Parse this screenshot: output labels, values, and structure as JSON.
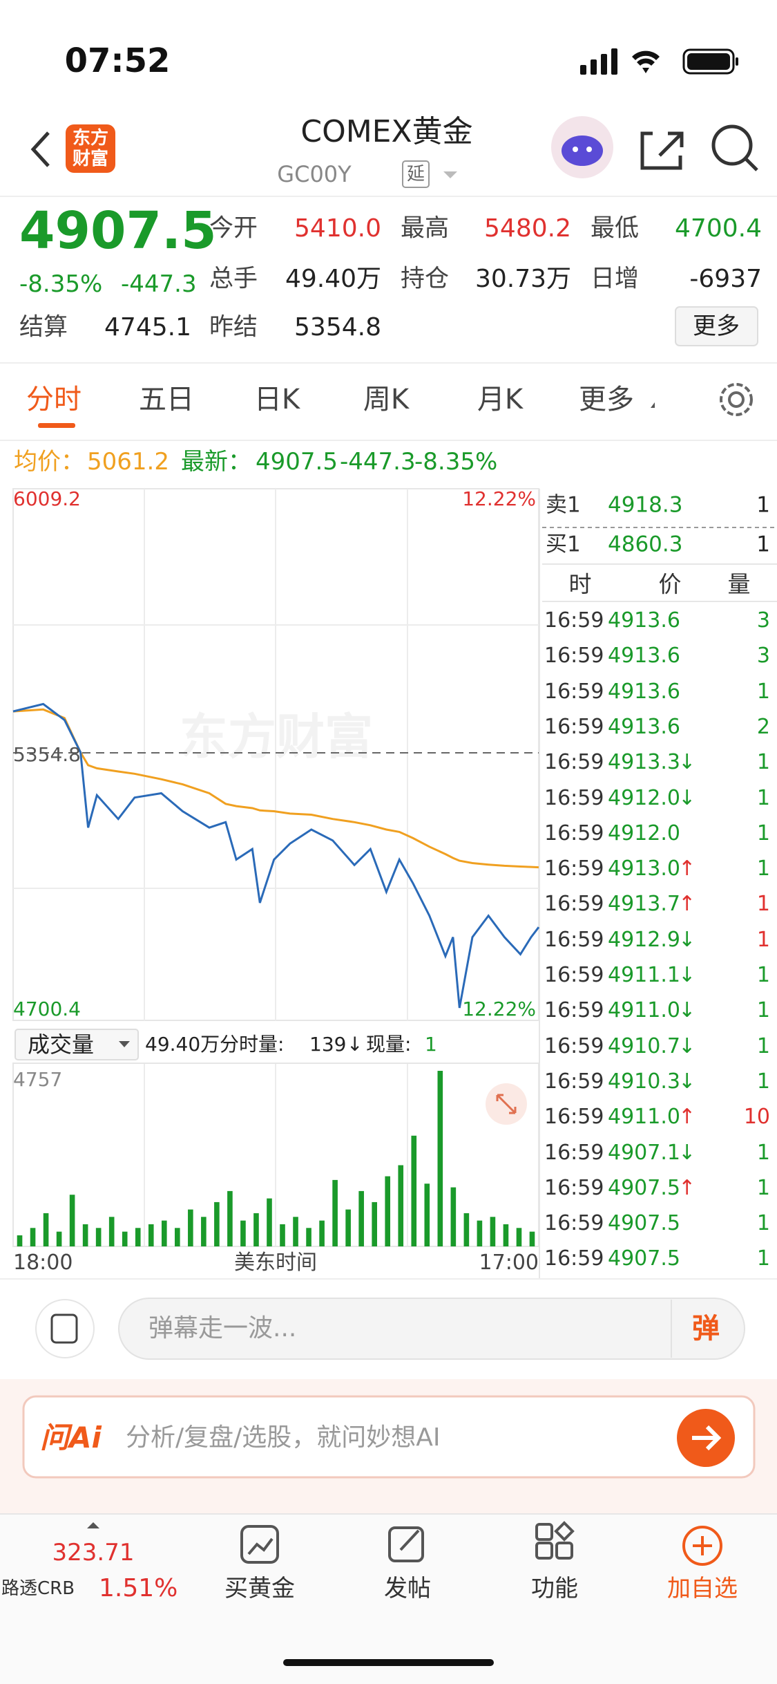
{
  "status": {
    "time": "07:52"
  },
  "header": {
    "logo": [
      "东方",
      "财富"
    ],
    "title": "COMEX黄金",
    "code": "GC00Y",
    "tag": "延"
  },
  "quote": {
    "price": "4907.5",
    "change_pct": "-8.35%",
    "change": "-447.3",
    "fields": [
      {
        "label": "今开",
        "value": "5410.0",
        "color": "#e0312f"
      },
      {
        "label": "最高",
        "value": "5480.2",
        "color": "#e0312f"
      },
      {
        "label": "最低",
        "value": "4700.4",
        "color": "#1a9a2a"
      },
      {
        "label": "总手",
        "value": "49.40万",
        "color": "#222"
      },
      {
        "label": "持仓",
        "value": "30.73万",
        "color": "#222"
      },
      {
        "label": "日增",
        "value": "-6937",
        "color": "#222"
      },
      {
        "label": "结算",
        "value": "4745.1",
        "color": "#222"
      },
      {
        "label": "昨结",
        "value": "5354.8",
        "color": "#222"
      }
    ],
    "more": "更多"
  },
  "tabs": [
    "分时",
    "五日",
    "日K",
    "周K",
    "月K",
    "更多"
  ],
  "summary": {
    "avg_label": "均价：",
    "avg": "5061.2",
    "latest_label": "最新：",
    "latest": "4907.5",
    "change": "-447.3",
    "change_pct": "-8.35%"
  },
  "chart": {
    "type": "line",
    "ylim": [
      4700.4,
      6009.2
    ],
    "ref": 5354.8,
    "pct_top": "12.22%",
    "pct_bottom": "12.22%",
    "watermark": "东方财富",
    "xlim": [
      0,
      1380
    ],
    "minutes": [
      0,
      79,
      135,
      177,
      197,
      220,
      276,
      319,
      389,
      445,
      515,
      558,
      586,
      628,
      648,
      685,
      727,
      783,
      839,
      896,
      938,
      980,
      1014,
      1050,
      1093,
      1135,
      1155,
      1172,
      1206,
      1248,
      1290,
      1332,
      1360,
      1380
    ],
    "price": [
      5461,
      5480,
      5439,
      5356,
      5163,
      5246,
      5185,
      5240,
      5251,
      5205,
      5163,
      5177,
      5081,
      5108,
      4970,
      5081,
      5122,
      5158,
      5130,
      5067,
      5108,
      4998,
      5081,
      5020,
      4937,
      4833,
      4882,
      4700.4,
      4882,
      4937,
      4882,
      4838,
      4882,
      4907.5
    ],
    "avg": [
      5461,
      5466,
      5444,
      5356,
      5323,
      5315,
      5307,
      5301,
      5287,
      5274,
      5251,
      5224,
      5218,
      5213,
      5207,
      5205,
      5199,
      5196,
      5185,
      5177,
      5169,
      5158,
      5152,
      5136,
      5114,
      5095,
      5085,
      5078,
      5072,
      5068,
      5065,
      5063,
      5062,
      5061.2
    ],
    "price_color": "#2a6ab8",
    "avg_color": "#f0a020",
    "x_labels": [
      "18:00",
      "美东时间",
      "17:00"
    ]
  },
  "volume": {
    "selector": "成交量",
    "total": "49.40万",
    "minute_label": "分时量:",
    "minute": "139",
    "arrow": "↓",
    "now_label": "现量:",
    "now": "1",
    "ylim": [
      0,
      4757
    ],
    "max_label": "4757",
    "color": "#1a9a2a",
    "values": [
      300,
      500,
      900,
      400,
      1400,
      600,
      500,
      800,
      400,
      500,
      600,
      700,
      500,
      1000,
      800,
      1200,
      1500,
      700,
      900,
      1300,
      600,
      800,
      500,
      700,
      1800,
      1000,
      1500,
      1200,
      1900,
      2200,
      3000,
      1700,
      4757,
      1600,
      900,
      700,
      800,
      600,
      500,
      400
    ]
  },
  "order_book": {
    "ask": {
      "label": "卖1",
      "price": "4918.3",
      "qty": "1"
    },
    "bid": {
      "label": "买1",
      "price": "4860.3",
      "qty": "1"
    }
  },
  "trades": {
    "headers": [
      "时",
      "价",
      "量"
    ],
    "rows": [
      {
        "time": "16:59",
        "price": "4913.6",
        "qty": "3",
        "qty_color": "#1a9a2a"
      },
      {
        "time": "16:59",
        "price": "4913.6",
        "qty": "3",
        "qty_color": "#1a9a2a"
      },
      {
        "time": "16:59",
        "price": "4913.6",
        "qty": "1",
        "qty_color": "#1a9a2a"
      },
      {
        "time": "16:59",
        "price": "4913.6",
        "qty": "2",
        "qty_color": "#1a9a2a"
      },
      {
        "time": "16:59",
        "price": "4913.3",
        "dir": "↓",
        "qty": "1",
        "qty_color": "#1a9a2a"
      },
      {
        "time": "16:59",
        "price": "4912.0",
        "dir": "↓",
        "qty": "1",
        "qty_color": "#1a9a2a"
      },
      {
        "time": "16:59",
        "price": "4912.0",
        "qty": "1",
        "qty_color": "#1a9a2a"
      },
      {
        "time": "16:59",
        "price": "4913.0",
        "dir": "↑",
        "qty": "1",
        "qty_color": "#1a9a2a"
      },
      {
        "time": "16:59",
        "price": "4913.7",
        "dir": "↑",
        "qty": "1",
        "qty_color": "#e0312f"
      },
      {
        "time": "16:59",
        "price": "4912.9",
        "dir": "↓",
        "qty": "1",
        "qty_color": "#e0312f"
      },
      {
        "time": "16:59",
        "price": "4911.1",
        "dir": "↓",
        "qty": "1",
        "qty_color": "#1a9a2a"
      },
      {
        "time": "16:59",
        "price": "4911.0",
        "dir": "↓",
        "qty": "1",
        "qty_color": "#1a9a2a"
      },
      {
        "time": "16:59",
        "price": "4910.7",
        "dir": "↓",
        "qty": "1",
        "qty_color": "#1a9a2a"
      },
      {
        "time": "16:59",
        "price": "4910.3",
        "dir": "↓",
        "qty": "1",
        "qty_color": "#1a9a2a"
      },
      {
        "time": "16:59",
        "price": "4911.0",
        "dir": "↑",
        "qty": "10",
        "qty_color": "#e0312f"
      },
      {
        "time": "16:59",
        "price": "4907.1",
        "dir": "↓",
        "qty": "1",
        "qty_color": "#1a9a2a"
      },
      {
        "time": "16:59",
        "price": "4907.5",
        "dir": "↑",
        "qty": "1",
        "qty_color": "#1a9a2a"
      },
      {
        "time": "16:59",
        "price": "4907.5",
        "qty": "1",
        "qty_color": "#1a9a2a"
      },
      {
        "time": "16:59",
        "price": "4907.5",
        "qty": "1",
        "qty_color": "#1a9a2a"
      }
    ]
  },
  "comment": {
    "placeholder": "弹幕走一波...",
    "button": "弹"
  },
  "ai": {
    "logo": "问Ai",
    "placeholder": "分析/复盘/选股，就问妙想AI"
  },
  "nav": {
    "ticker": {
      "value": "323.71",
      "name": "路透CRB",
      "pct": "1.51%"
    },
    "items": [
      "买黄金",
      "发帖",
      "功能",
      "加自选"
    ]
  }
}
